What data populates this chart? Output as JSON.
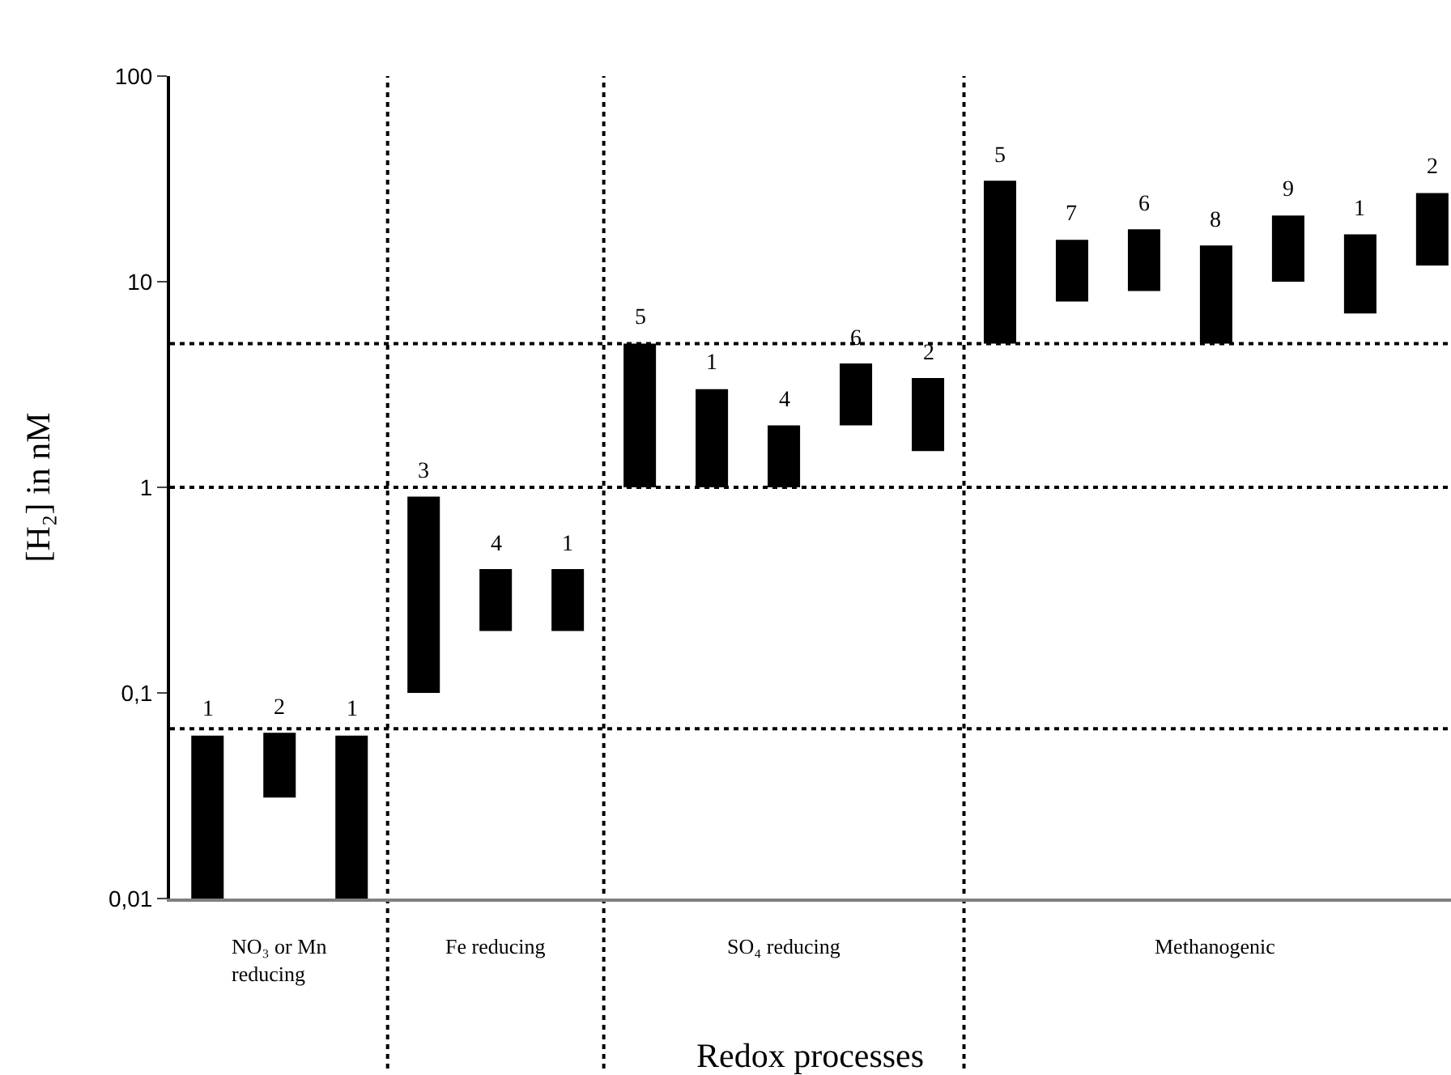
{
  "chart_data": {
    "type": "bar",
    "xlabel": "Redox processes",
    "ylabel": "[H₂] in nM",
    "categories": [
      null,
      null,
      null,
      null,
      null,
      null,
      null,
      null,
      null,
      null,
      null,
      null,
      null,
      null,
      null,
      null,
      null,
      null
    ],
    "base": [
      0.01,
      0.031,
      0.01,
      0.1,
      0.2,
      0.2,
      1,
      1,
      1,
      2,
      1.5,
      5,
      8,
      9,
      5,
      10,
      7,
      12
    ],
    "values": [
      0.052,
      0.033,
      0.052,
      0.8,
      0.2,
      0.2,
      4,
      2,
      1,
      2,
      1.9,
      26,
      8,
      9,
      10,
      11,
      10,
      15
    ],
    "color": "#000000",
    "log": true,
    "ylim": [
      0.01,
      100
    ],
    "yticks": [
      {
        "value": 0.01,
        "label": "0,01"
      },
      {
        "value": 0.1,
        "label": "0,1"
      },
      1,
      10,
      100
    ],
    "tick_labels": "y",
    "grid": false,
    "legend": false,
    "ref_lines": [
      {
        "axis": "y",
        "value": 0.067,
        "line_style": "dotted",
        "color": "#000000"
      },
      {
        "axis": "y",
        "value": 1,
        "line_style": "dotted",
        "color": "#000000"
      },
      {
        "axis": "y",
        "value": 5,
        "line_style": "dotted",
        "color": "#000000"
      }
    ],
    "annotations": [
      "NO₃ or Mn\nreducing",
      "Fe reducing",
      "SO₄ reducing",
      "Methanogenic",
      {
        "text": "1",
        "y": 0.062
      },
      {
        "text": "2",
        "y": 0.064
      },
      {
        "text": "1",
        "y": 0.062
      },
      {
        "text": "3",
        "y": 0.9
      },
      {
        "text": "4",
        "y": 0.4
      },
      {
        "text": "1",
        "y": 0.4
      },
      {
        "text": "5",
        "y": 5
      },
      {
        "text": "1",
        "y": 3
      },
      {
        "text": "4",
        "y": 2
      },
      {
        "text": "6",
        "y": 4
      },
      {
        "text": "2",
        "y": 3.4
      },
      {
        "text": "5",
        "y": 31
      },
      {
        "text": "7",
        "y": 16
      },
      {
        "text": "6",
        "y": 18
      },
      {
        "text": "8",
        "y": 15
      },
      {
        "text": "9",
        "y": 21
      },
      {
        "text": "1",
        "y": 17
      },
      {
        "text": "2",
        "y": 27
      }
    ]
  }
}
